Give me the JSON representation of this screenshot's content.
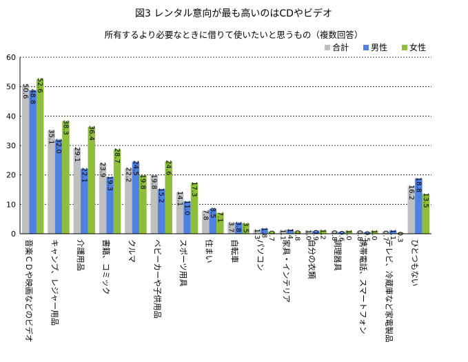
{
  "chart_data": {
    "type": "bar",
    "title": "図3 レンタル意向が最も高いのはCDやビデオ",
    "subtitle": "所有するより必要なときに借りて使いたいと思うもの（複数回答）",
    "categories": [
      "音楽ＣＤや映画などのビデオ",
      "キャンプ、レジャー用品",
      "介護用品",
      "書籍、コミック",
      "クルマ",
      "ベビーカーや子供用品",
      "スポーツ用具",
      "住まい",
      "自転車",
      "パソコン",
      "家具・インテリア",
      "自分の衣類",
      "調理器具",
      "携帯電話、スマートフォン",
      "テレビ、冷蔵庫など家電製品",
      "ひとつもない"
    ],
    "series": [
      {
        "name": "合計",
        "color": "#bfbfbf",
        "values": [
          50.6,
          35.1,
          29.1,
          23.9,
          22.2,
          19.8,
          14.1,
          7.8,
          3.7,
          1.3,
          1.1,
          1.0,
          0.8,
          0.8,
          0.7,
          16.2
        ],
        "labels": [
          "50.6",
          "35.1",
          "29.1",
          "23.9",
          "22.2",
          "19.8",
          "14.1",
          "7.8",
          "3.7",
          "1.3",
          "1.1",
          "1.0",
          "0.8",
          "0.8",
          "0.7",
          "16.2"
        ]
      },
      {
        "name": "男性",
        "color": "#4f81e0",
        "values": [
          48.8,
          32.0,
          22.1,
          19.3,
          24.5,
          15.2,
          11.0,
          8.5,
          3.8,
          1.8,
          1.4,
          0.9,
          0.6,
          0.5,
          1.1,
          18.8
        ],
        "labels": [
          "48.8",
          "32.0",
          "22.1",
          "19.3",
          "24.5",
          "15.2",
          "11.0",
          "8.5",
          "3.8",
          "1.8",
          "1.4",
          "0.9",
          "0.6",
          "0.5",
          "1.1",
          "18.8"
        ]
      },
      {
        "name": "女性",
        "color": "#8fbe3c",
        "values": [
          52.6,
          38.3,
          36.4,
          28.7,
          19.8,
          24.6,
          17.3,
          7.1,
          3.5,
          0.7,
          0.8,
          1.2,
          1.0,
          1.0,
          0.3,
          13.5
        ],
        "labels": [
          "52.6",
          "38.3",
          "36.4",
          "28.7",
          "19.8",
          "24.6",
          "17.3",
          "7.1",
          "3.5",
          "0.7",
          "0.8",
          "1.2",
          "1.0",
          "1.0",
          "0.3",
          "13.5"
        ]
      }
    ],
    "yticks": [
      "0",
      "10",
      "20",
      "30",
      "40",
      "50",
      "60"
    ],
    "ylim": [
      0,
      60
    ],
    "grid": "horizontal dashed",
    "legend": "top-right"
  }
}
